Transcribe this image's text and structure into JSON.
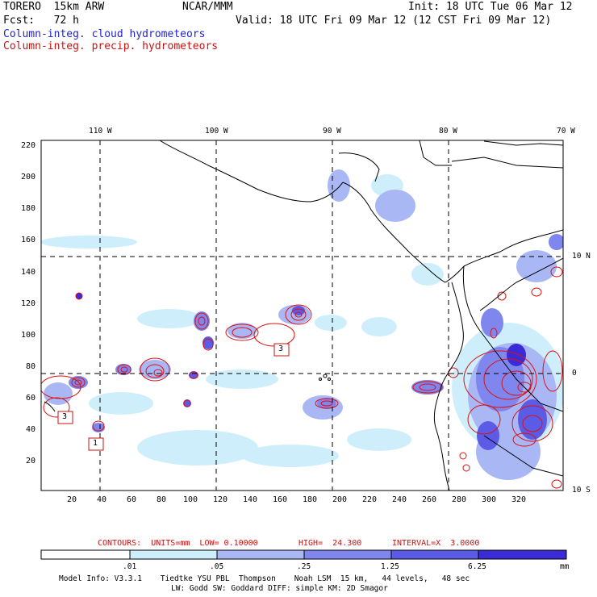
{
  "header": {
    "model_line": "TORERO  15km ARW",
    "forecast_line": "Fcst:   72 h",
    "org": "NCAR/MMM",
    "init": "Init: 18 UTC Tue 06 Mar 12",
    "valid": "Valid: 18 UTC Fri 09 Mar 12 (12 CST Fri 09 Mar 12)",
    "legend_cloud": "Column-integ. cloud hydrometeors",
    "legend_precip": "Column-integ. precip. hydrometeors",
    "colors": {
      "cloud": "#2222cc",
      "precip": "#cc1111"
    }
  },
  "map": {
    "top_lon_labels": [
      "110 W",
      "100 W",
      "90 W",
      "80 W",
      "70 W"
    ],
    "right_lat_labels": [
      "10 N",
      "0",
      "10 S"
    ],
    "x_ticks": [
      "20",
      "40",
      "60",
      "80",
      "100",
      "120",
      "140",
      "160",
      "180",
      "200",
      "220",
      "240",
      "260",
      "280",
      "300",
      "320"
    ],
    "y_ticks": [
      "220",
      "200",
      "180",
      "160",
      "140",
      "120",
      "100",
      "80",
      "60",
      "40",
      "20"
    ],
    "box_labels": [
      "3",
      "3",
      "1"
    ],
    "shading_colors": [
      "#ffffff",
      "#cfeefc",
      "#a9b7f5",
      "#7f86ee",
      "#5c5be6",
      "#3a2bd6"
    ]
  },
  "contour_info": {
    "units": "CONTOURS:  UNITS=mm  LOW= 0.10000",
    "high": "HIGH=  24.300",
    "interval": "INTERVAL=X  3.0000"
  },
  "colorbar": {
    "ticks": [
      ".01",
      ".05",
      ".25",
      "1.25",
      "6.25"
    ],
    "unit": "mm"
  },
  "footer": {
    "line1": "Model Info: V3.3.1    Tiedtke YSU PBL  Thompson    Noah LSM  15 km,   44 levels,   48 sec",
    "line2": "LW: Godd SW: Goddard DIFF: simple KM: 2D Smagor"
  }
}
